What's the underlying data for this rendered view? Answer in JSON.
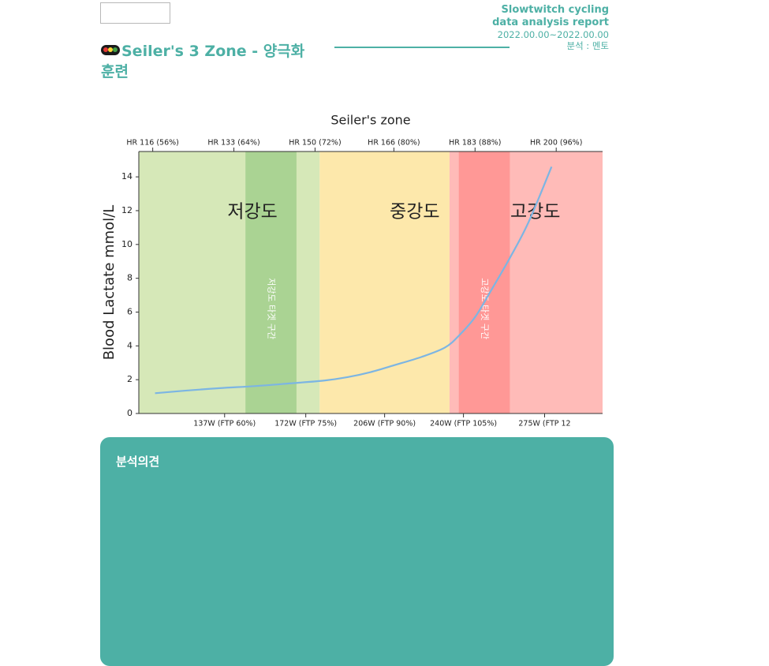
{
  "header": {
    "title": "Seiler's 3 Zone - 양극화 훈련",
    "report_name": "Slowtwitch cycling data analysis report",
    "date_range": "2022.00.00~2022.00.00",
    "analyst": "분석 : 멘토",
    "accent_color": "#4db0a5",
    "icon": "traffic-light-icon",
    "logo_icon": "broken-image-icon"
  },
  "chart_data": {
    "type": "line",
    "title": "Seiler's zone",
    "ylabel": "Blood Lactate mmol/L",
    "xlabel": "",
    "ylim": [
      0,
      15.5
    ],
    "yticks": [
      0,
      2,
      4,
      6,
      8,
      10,
      12,
      14
    ],
    "xlim": [
      100,
      300
    ],
    "bottom_ticks": [
      {
        "x": 137,
        "label": "137W (FTP 60%)"
      },
      {
        "x": 172,
        "label": "172W (FTP 75%)"
      },
      {
        "x": 206,
        "label": "206W (FTP 90%)"
      },
      {
        "x": 240,
        "label": "240W (FTP 105%)"
      },
      {
        "x": 275,
        "label": "275W (FTP 12"
      }
    ],
    "top_ticks": [
      {
        "x": 106,
        "label": "HR 116 (56%)"
      },
      {
        "x": 141,
        "label": "HR 133 (64%)"
      },
      {
        "x": 176,
        "label": "HR 150 (72%)"
      },
      {
        "x": 210,
        "label": "HR 166 (80%)"
      },
      {
        "x": 245,
        "label": "HR 183 (88%)"
      },
      {
        "x": 280,
        "label": "HR 200 (96%)"
      }
    ],
    "zones": [
      {
        "label": "저강도",
        "from": 100,
        "to": 178,
        "color": "#d6e8b8",
        "label_x": 149,
        "label_y": 11.9
      },
      {
        "label": "중강도",
        "from": 178,
        "to": 234,
        "color": "#fde8ab",
        "label_x": 219,
        "label_y": 11.9
      },
      {
        "label": "고강도",
        "from": 234,
        "to": 300,
        "color": "#ffbbb8",
        "label_x": 271,
        "label_y": 11.9
      }
    ],
    "target_bands": [
      {
        "label": "저강도 타겟 구간",
        "from": 146,
        "to": 168,
        "color": "#aad393",
        "text_y": 6.2
      },
      {
        "label": "고강도 타겟 구간",
        "from": 238,
        "to": 260,
        "color": "#ff9896",
        "text_y": 6.2
      }
    ],
    "series": [
      {
        "color": "#7cb5e3",
        "points": [
          [
            107,
            1.2
          ],
          [
            120,
            1.35
          ],
          [
            135,
            1.5
          ],
          [
            150,
            1.62
          ],
          [
            165,
            1.78
          ],
          [
            180,
            1.95
          ],
          [
            190,
            2.15
          ],
          [
            200,
            2.45
          ],
          [
            210,
            2.85
          ],
          [
            222,
            3.35
          ],
          [
            232,
            3.9
          ],
          [
            238,
            4.6
          ],
          [
            245,
            5.7
          ],
          [
            252,
            7.3
          ],
          [
            260,
            9.2
          ],
          [
            268,
            11.3
          ],
          [
            278,
            14.6
          ]
        ]
      }
    ]
  },
  "analysis": {
    "title": "분석의견"
  }
}
